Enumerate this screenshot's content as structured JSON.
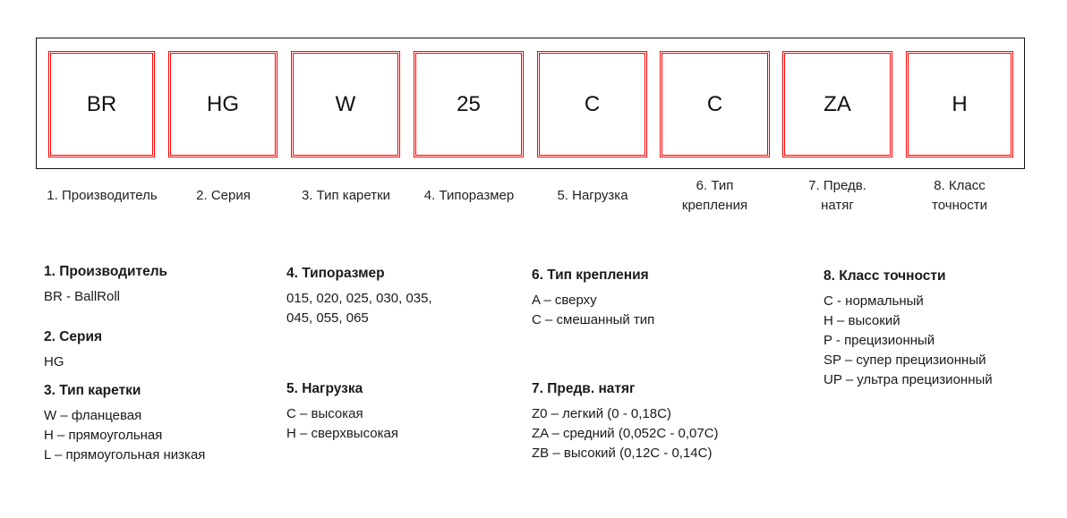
{
  "boxes": [
    {
      "code": "BR",
      "label": "1. Производитель"
    },
    {
      "code": "HG",
      "label": "2. Серия"
    },
    {
      "code": "W",
      "label": "3. Тип каретки"
    },
    {
      "code": "25",
      "label": "4. Типоразмер"
    },
    {
      "code": "C",
      "label": "5. Нагрузка"
    },
    {
      "code": "C",
      "label": "6. Тип крепления"
    },
    {
      "code": "ZA",
      "label": "7. Предв. натяг"
    },
    {
      "code": "H",
      "label": "8. Класс точности"
    }
  ],
  "sections": {
    "s1": {
      "title": "1. Производитель",
      "items": [
        "BR - BallRoll"
      ]
    },
    "s2": {
      "title": "2. Серия",
      "items": [
        "HG"
      ]
    },
    "s3": {
      "title": "3. Тип каретки",
      "items": [
        "W – фланцевая",
        "H – прямоугольная",
        "L – прямоугольная низкая"
      ]
    },
    "s4": {
      "title": "4. Типоразмер",
      "items": [
        "015, 020, 025, 030, 035,",
        "045, 055, 065"
      ]
    },
    "s5": {
      "title": "5. Нагрузка",
      "items": [
        "C – высокая",
        "H – сверхвысокая"
      ]
    },
    "s6": {
      "title": "6. Тип крепления",
      "items": [
        "A – сверху",
        "C – смешанный тип"
      ]
    },
    "s7": {
      "title": "7. Предв. натяг",
      "items": [
        "Z0 – легкий (0 - 0,18C)",
        "ZA – средний (0,052C - 0,07C)",
        "ZB – высокий (0,12C - 0,14C)"
      ]
    },
    "s8": {
      "title": "8. Класс точности",
      "items": [
        "C - нормальный",
        "H – высокий",
        "P - прецизионный",
        "SP – супер прецизионный",
        "UP – ультра прецизионный"
      ]
    }
  },
  "colors": {
    "box_border": "#ff0000",
    "frame": "#111111"
  }
}
